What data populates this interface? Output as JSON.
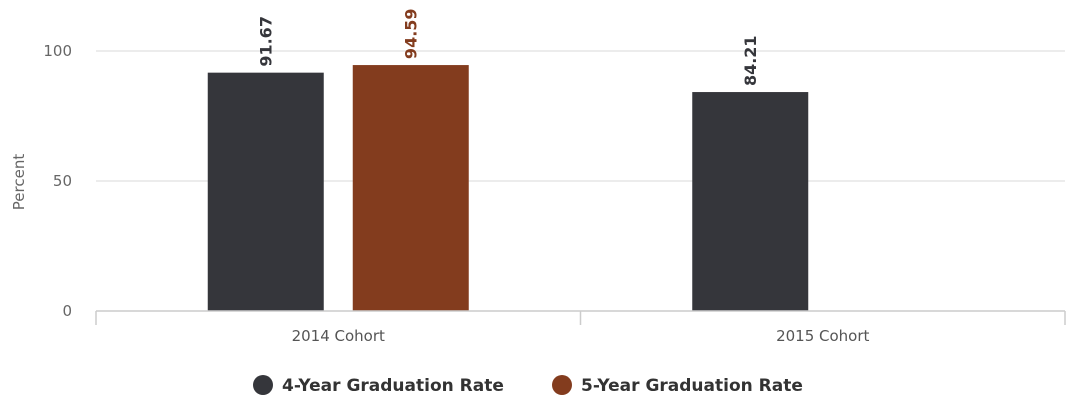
{
  "chart_data": {
    "type": "bar",
    "title": "",
    "xlabel": "",
    "ylabel": "Percent",
    "ylim": [
      0,
      100
    ],
    "yticks": [
      0,
      50,
      100
    ],
    "grid": true,
    "legend_position": "bottom",
    "categories": [
      "2014 Cohort",
      "2015 Cohort"
    ],
    "series": [
      {
        "name": "4-Year Graduation Rate",
        "color": "#35363b",
        "values": [
          91.67,
          84.21
        ],
        "labels": [
          "91.67",
          "84.21"
        ]
      },
      {
        "name": "5-Year Graduation Rate",
        "color": "#833c1e",
        "values": [
          94.59,
          null
        ],
        "labels": [
          "94.59",
          null
        ]
      }
    ]
  }
}
